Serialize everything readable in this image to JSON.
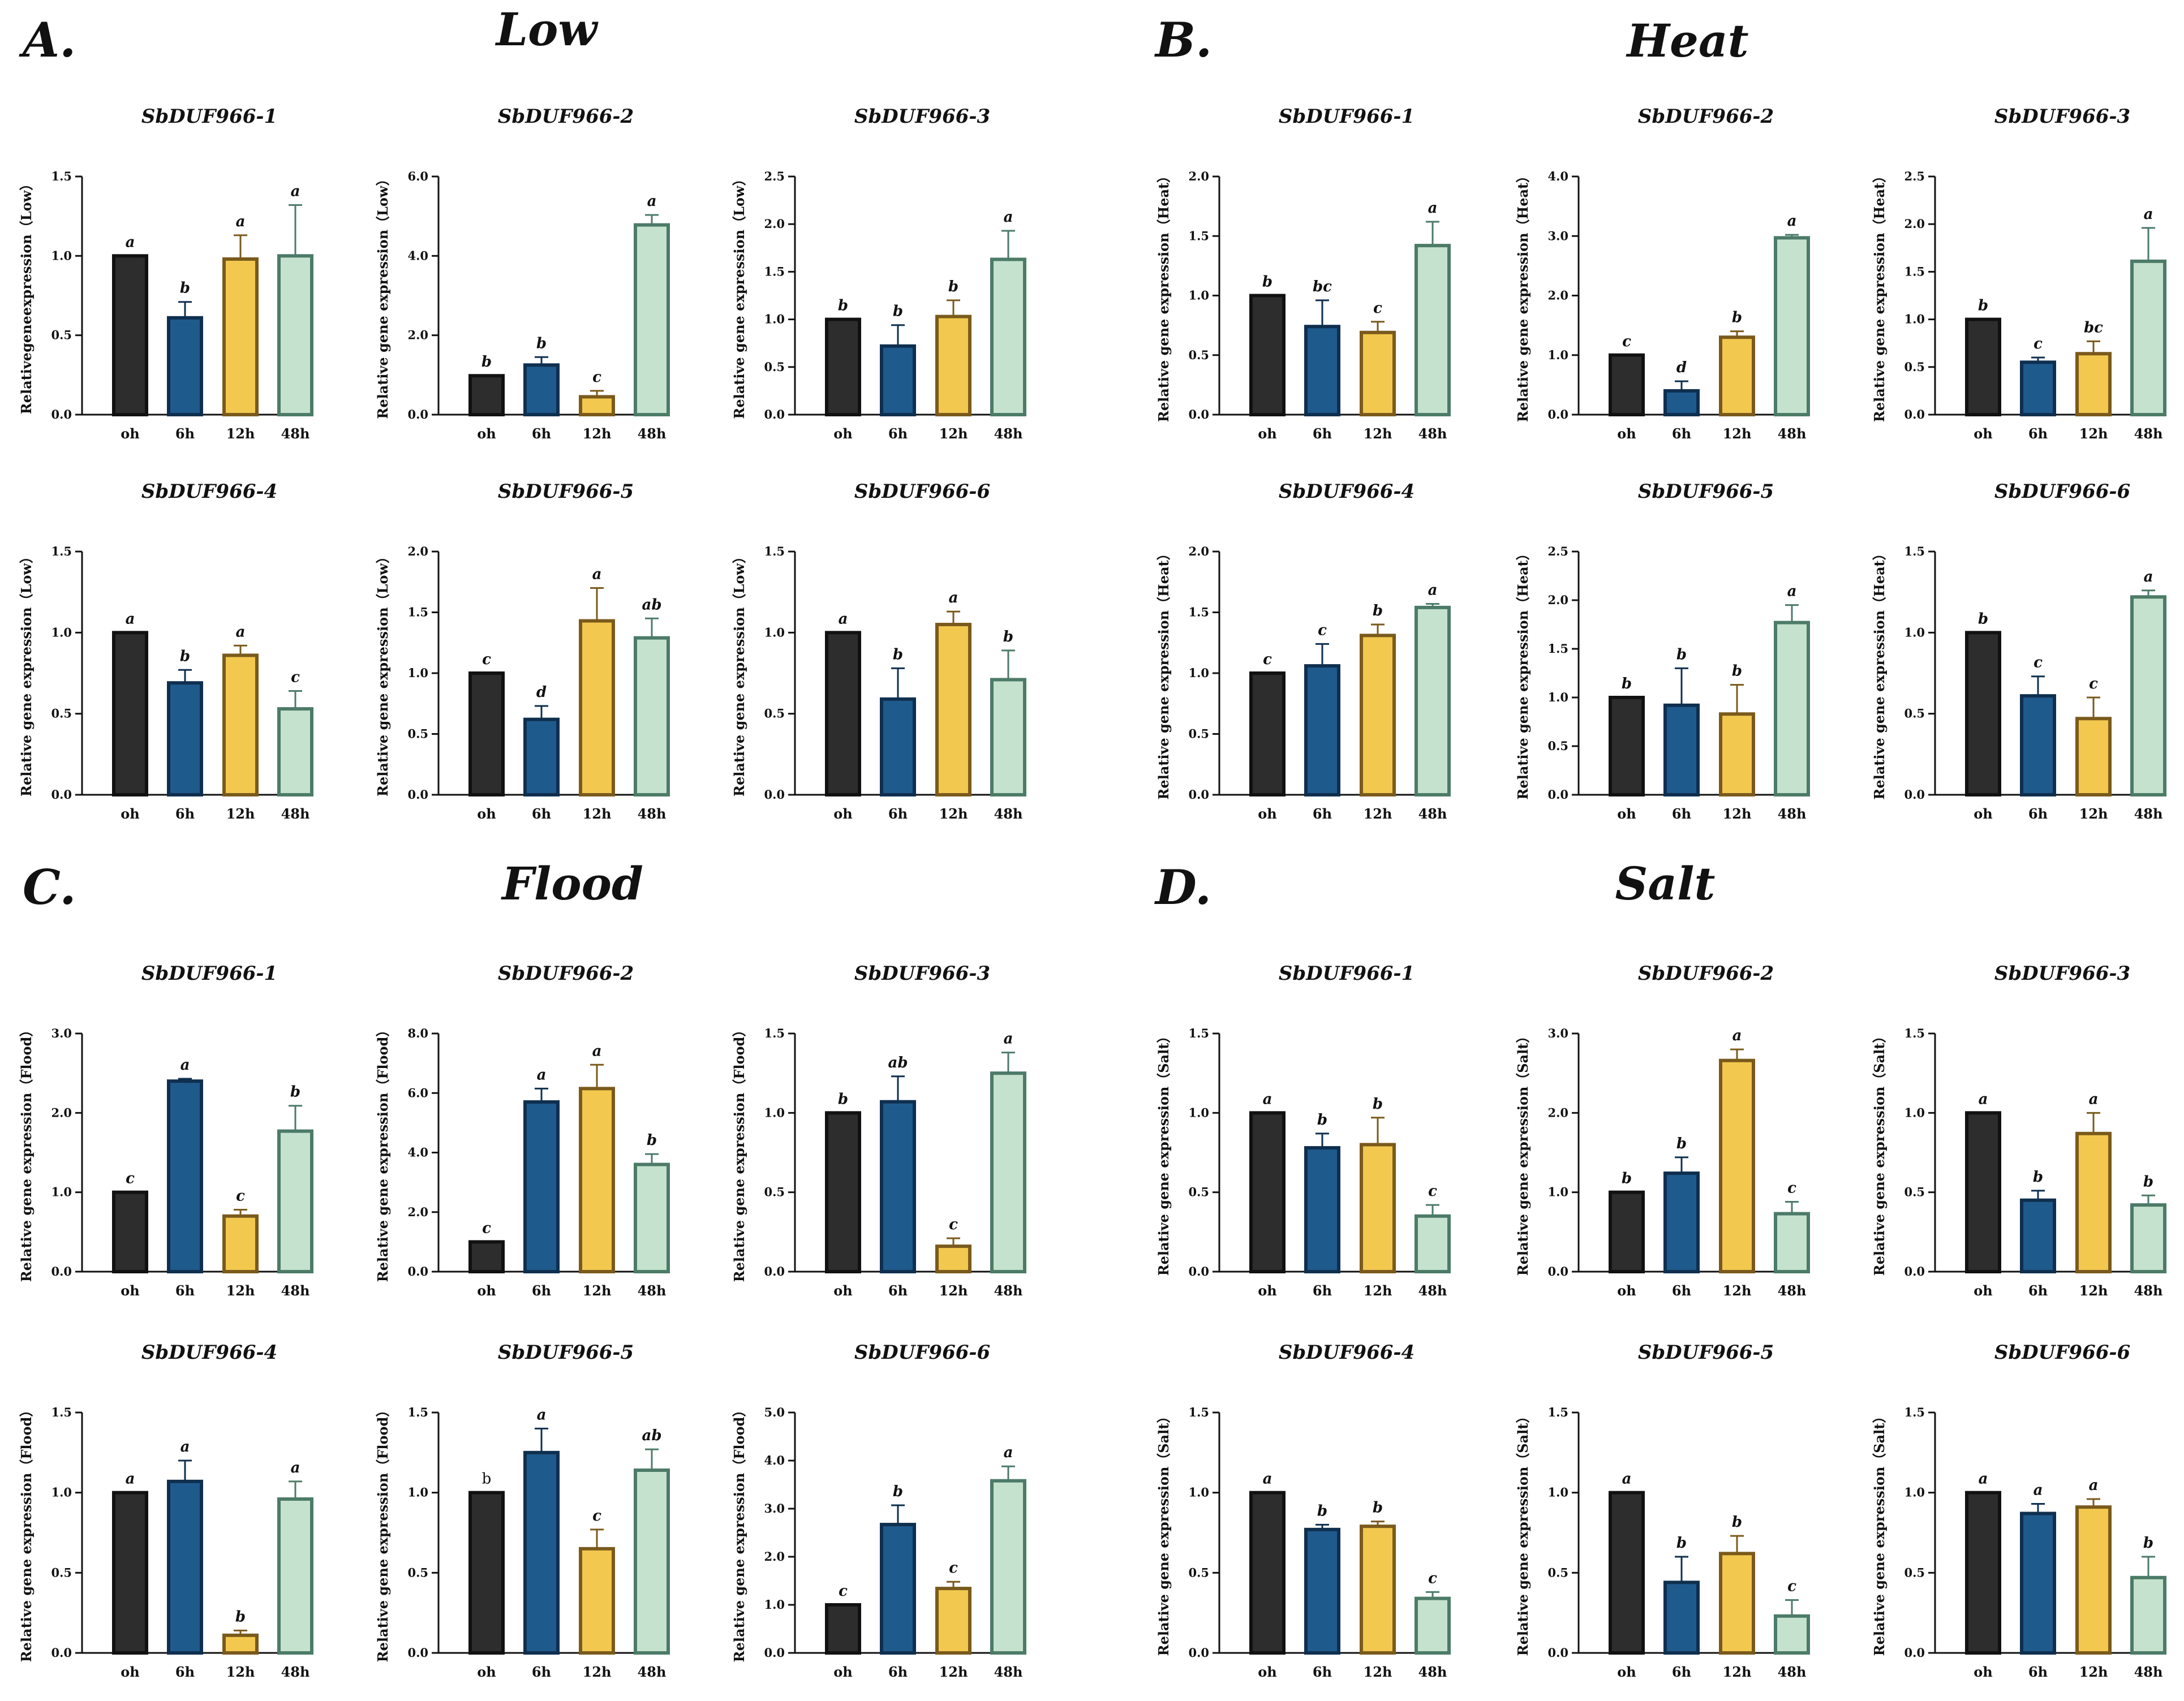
{
  "figure": {
    "panels": [
      {
        "letter": "A.",
        "title": "Low"
      },
      {
        "letter": "B.",
        "title": "Heat"
      },
      {
        "letter": "C.",
        "title": "Flood"
      },
      {
        "letter": "D.",
        "title": "Salt"
      }
    ]
  },
  "colors": {
    "oh": {
      "fill": "#2d2d2d",
      "stroke": "#111111"
    },
    "6h": {
      "fill": "#1f5a8c",
      "stroke": "#0f2f4f"
    },
    "12h": {
      "fill": "#f2c84f",
      "stroke": "#7a5a1c"
    },
    "48h": {
      "fill": "#c4e2cd",
      "stroke": "#4c7b68"
    },
    "text": "#111111"
  },
  "chart_data": [
    {
      "id": "low-1",
      "panel": "A.",
      "condition": "Low",
      "type": "bar",
      "title": "SbDUF966-1",
      "ylabel": "Relativegeneexpression（Low）",
      "categories": [
        "oh",
        "6h",
        "12h",
        "48h"
      ],
      "values": [
        1.0,
        0.61,
        0.98,
        1.0
      ],
      "errors": [
        0,
        0.1,
        0.15,
        0.32
      ],
      "significance": [
        "a",
        "b",
        "a",
        "a"
      ],
      "ylim": [
        0,
        1.5
      ],
      "yticks": [
        "0.0",
        "0.5",
        "1.0",
        "1.5"
      ]
    },
    {
      "id": "low-2",
      "panel": "A.",
      "condition": "Low",
      "type": "bar",
      "title": "SbDUF966-2",
      "ylabel": "Relative gene expression（Low）",
      "categories": [
        "oh",
        "6h",
        "12h",
        "48h"
      ],
      "values": [
        0.98,
        1.25,
        0.45,
        4.78
      ],
      "errors": [
        0,
        0.2,
        0.15,
        0.25
      ],
      "significance": [
        "b",
        "b",
        "c",
        "a"
      ],
      "ylim": [
        0,
        6.0
      ],
      "yticks": [
        "0.0",
        "2.0",
        "4.0",
        "6.0"
      ]
    },
    {
      "id": "low-3",
      "panel": "A.",
      "condition": "Low",
      "type": "bar",
      "title": "SbDUF966-3",
      "ylabel": "Relative gene expression（Low）",
      "categories": [
        "oh",
        "6h",
        "12h",
        "48h"
      ],
      "values": [
        1.0,
        0.72,
        1.03,
        1.63
      ],
      "errors": [
        0,
        0.22,
        0.17,
        0.3
      ],
      "significance": [
        "b",
        "b",
        "b",
        "a"
      ],
      "ylim": [
        0,
        2.5
      ],
      "yticks": [
        "0.0",
        "0.5",
        "1.0",
        "1.5",
        "2.0",
        "2.5"
      ]
    },
    {
      "id": "low-4",
      "panel": "A.",
      "condition": "Low",
      "type": "bar",
      "title": "SbDUF966-4",
      "ylabel": "Relative gene expression（Low）",
      "categories": [
        "oh",
        "6h",
        "12h",
        "48h"
      ],
      "values": [
        1.0,
        0.69,
        0.86,
        0.53
      ],
      "errors": [
        0,
        0.08,
        0.06,
        0.11
      ],
      "significance": [
        "a",
        "b",
        "a",
        "c"
      ],
      "ylim": [
        0,
        1.5
      ],
      "yticks": [
        "0.0",
        "0.5",
        "1.0",
        "1.5"
      ]
    },
    {
      "id": "low-5",
      "panel": "A.",
      "condition": "Low",
      "type": "bar",
      "title": "SbDUF966-5",
      "ylabel": "Relative gene expression（Low）",
      "categories": [
        "oh",
        "6h",
        "12h",
        "48h"
      ],
      "values": [
        1.0,
        0.62,
        1.43,
        1.29
      ],
      "errors": [
        0,
        0.11,
        0.27,
        0.16
      ],
      "significance": [
        "c",
        "d",
        "a",
        "ab"
      ],
      "ylim": [
        0,
        2.0
      ],
      "yticks": [
        "0.0",
        "0.5",
        "1.0",
        "1.5",
        "2.0"
      ]
    },
    {
      "id": "low-6",
      "panel": "A.",
      "condition": "Low",
      "type": "bar",
      "title": "SbDUF966-6",
      "ylabel": "Relative gene expression（Low）",
      "categories": [
        "oh",
        "6h",
        "12h",
        "48h"
      ],
      "values": [
        1.0,
        0.59,
        1.05,
        0.71
      ],
      "errors": [
        0,
        0.19,
        0.08,
        0.18
      ],
      "significance": [
        "a",
        "b",
        "a",
        "b"
      ],
      "ylim": [
        0,
        1.5
      ],
      "yticks": [
        "0.0",
        "0.5",
        "1.0",
        "1.5"
      ]
    },
    {
      "id": "heat-1",
      "panel": "B.",
      "condition": "Heat",
      "type": "bar",
      "title": "SbDUF966-1",
      "ylabel": "Relative gene expression（Heat）",
      "categories": [
        "oh",
        "6h",
        "12h",
        "48h"
      ],
      "values": [
        1.0,
        0.74,
        0.69,
        1.42
      ],
      "errors": [
        0,
        0.22,
        0.09,
        0.2
      ],
      "significance": [
        "b",
        "bc",
        "c",
        "a"
      ],
      "ylim": [
        0,
        2.0
      ],
      "yticks": [
        "0.0",
        "0.5",
        "1.0",
        "1.5",
        "2.0"
      ]
    },
    {
      "id": "heat-2",
      "panel": "B.",
      "condition": "Heat",
      "type": "bar",
      "title": "SbDUF966-2",
      "ylabel": "Relative gene expression（Heat）",
      "categories": [
        "oh",
        "6h",
        "12h",
        "48h"
      ],
      "values": [
        1.0,
        0.4,
        1.3,
        2.97
      ],
      "errors": [
        0,
        0.16,
        0.1,
        0.05
      ],
      "significance": [
        "c",
        "d",
        "b",
        "a"
      ],
      "ylim": [
        0,
        4.0
      ],
      "yticks": [
        "0.0",
        "1.0",
        "2.0",
        "3.0",
        "4.0"
      ]
    },
    {
      "id": "heat-3",
      "panel": "B.",
      "condition": "Heat",
      "type": "bar",
      "title": "SbDUF966-3",
      "ylabel": "Relative gene expression（Heat）",
      "categories": [
        "oh",
        "6h",
        "12h",
        "48h"
      ],
      "values": [
        1.0,
        0.55,
        0.64,
        1.61
      ],
      "errors": [
        0,
        0.05,
        0.13,
        0.35
      ],
      "significance": [
        "b",
        "c",
        "bc",
        "a"
      ],
      "ylim": [
        0,
        2.5
      ],
      "yticks": [
        "0.0",
        "0.5",
        "1.0",
        "1.5",
        "2.0",
        "2.5"
      ]
    },
    {
      "id": "heat-4",
      "panel": "B.",
      "condition": "Heat",
      "type": "bar",
      "title": "SbDUF966-4",
      "ylabel": "Relative gene expression（Heat）",
      "categories": [
        "oh",
        "6h",
        "12h",
        "48h"
      ],
      "values": [
        1.0,
        1.06,
        1.31,
        1.54
      ],
      "errors": [
        0,
        0.18,
        0.09,
        0.03
      ],
      "significance": [
        "c",
        "c",
        "b",
        "a"
      ],
      "ylim": [
        0,
        2.0
      ],
      "yticks": [
        "0.0",
        "0.5",
        "1.0",
        "1.5",
        "2.0"
      ]
    },
    {
      "id": "heat-5",
      "panel": "B.",
      "condition": "Heat",
      "type": "bar",
      "title": "SbDUF966-5",
      "ylabel": "Relative gene expression（Heat）",
      "categories": [
        "oh",
        "6h",
        "12h",
        "48h"
      ],
      "values": [
        1.0,
        0.92,
        0.83,
        1.77
      ],
      "errors": [
        0,
        0.38,
        0.3,
        0.18
      ],
      "significance": [
        "b",
        "b",
        "b",
        "a"
      ],
      "ylim": [
        0,
        2.5
      ],
      "yticks": [
        "0.0",
        "0.5",
        "1.0",
        "1.5",
        "2.0",
        "2.5"
      ]
    },
    {
      "id": "heat-6",
      "panel": "B.",
      "condition": "Heat",
      "type": "bar",
      "title": "SbDUF966-6",
      "ylabel": "Relative gene expression（Heat）",
      "categories": [
        "oh",
        "6h",
        "12h",
        "48h"
      ],
      "values": [
        1.0,
        0.61,
        0.47,
        1.22
      ],
      "errors": [
        0,
        0.12,
        0.13,
        0.04
      ],
      "significance": [
        "b",
        "c",
        "c",
        "a"
      ],
      "ylim": [
        0,
        1.5
      ],
      "yticks": [
        "0.0",
        "0.5",
        "1.0",
        "1.5"
      ]
    },
    {
      "id": "flood-1",
      "panel": "C.",
      "condition": "Flood",
      "type": "bar",
      "title": "SbDUF966-1",
      "ylabel": "Relative gene expression（Flood）",
      "categories": [
        "oh",
        "6h",
        "12h",
        "48h"
      ],
      "values": [
        1.0,
        2.4,
        0.7,
        1.77
      ],
      "errors": [
        0,
        0.03,
        0.08,
        0.32
      ],
      "significance": [
        "c",
        "a",
        "c",
        "b"
      ],
      "ylim": [
        0,
        3.0
      ],
      "yticks": [
        "0.0",
        "1.0",
        "2.0",
        "3.0"
      ]
    },
    {
      "id": "flood-2",
      "panel": "C.",
      "condition": "Flood",
      "type": "bar",
      "title": "SbDUF966-2",
      "ylabel": "Relative gene expression（Flood）",
      "categories": [
        "oh",
        "6h",
        "12h",
        "48h"
      ],
      "values": [
        1.0,
        5.7,
        6.15,
        3.6
      ],
      "errors": [
        0,
        0.45,
        0.8,
        0.35
      ],
      "significance": [
        "c",
        "a",
        "a",
        "b"
      ],
      "ylim": [
        0,
        8.0
      ],
      "yticks": [
        "0.0",
        "2.0",
        "4.0",
        "6.0",
        "8.0"
      ]
    },
    {
      "id": "flood-3",
      "panel": "C.",
      "condition": "Flood",
      "type": "bar",
      "title": "SbDUF966-3",
      "ylabel": "Relative gene expression（Flood）",
      "categories": [
        "oh",
        "6h",
        "12h",
        "48h"
      ],
      "values": [
        1.0,
        1.07,
        0.16,
        1.25
      ],
      "errors": [
        0,
        0.16,
        0.05,
        0.13
      ],
      "significance": [
        "b",
        "ab",
        "c",
        "a"
      ],
      "ylim": [
        0,
        1.5
      ],
      "yticks": [
        "0.0",
        "0.5",
        "1.0",
        "1.5"
      ]
    },
    {
      "id": "flood-4",
      "panel": "C.",
      "condition": "Flood",
      "type": "bar",
      "title": "SbDUF966-4",
      "ylabel": "Relative gene expression（Flood）",
      "categories": [
        "oh",
        "6h",
        "12h",
        "48h"
      ],
      "values": [
        1.0,
        1.07,
        0.11,
        0.96
      ],
      "errors": [
        0,
        0.13,
        0.03,
        0.11
      ],
      "significance": [
        "a",
        "a",
        "b",
        "a"
      ],
      "ylim": [
        0,
        1.5
      ],
      "yticks": [
        "0.0",
        "0.5",
        "1.0",
        "1.5"
      ]
    },
    {
      "id": "flood-5",
      "panel": "C.",
      "condition": "Flood",
      "type": "bar",
      "title": "SbDUF966-5",
      "ylabel": "Relative gene expression（Flood）",
      "categories": [
        "oh",
        "6h",
        "12h",
        "48h"
      ],
      "values": [
        1.0,
        1.25,
        0.65,
        1.14
      ],
      "errors": [
        0,
        0.15,
        0.12,
        0.13
      ],
      "significance": [
        "b",
        "a",
        "c",
        "ab"
      ],
      "significance_style": [
        "upright",
        "italic",
        "italic",
        "italic"
      ],
      "ylim": [
        0,
        1.5
      ],
      "yticks": [
        "0.0",
        "0.5",
        "1.0",
        "1.5"
      ]
    },
    {
      "id": "flood-6",
      "panel": "C.",
      "condition": "Flood",
      "type": "bar",
      "title": "SbDUF966-6",
      "ylabel": "Relative gene expression（Flood）",
      "categories": [
        "oh",
        "6h",
        "12h",
        "48h"
      ],
      "values": [
        1.0,
        2.67,
        1.34,
        3.58
      ],
      "errors": [
        0,
        0.4,
        0.14,
        0.3
      ],
      "significance": [
        "c",
        "b",
        "c",
        "a"
      ],
      "ylim": [
        0,
        5.0
      ],
      "yticks": [
        "0.0",
        "1.0",
        "2.0",
        "3.0",
        "4.0",
        "5.0"
      ]
    },
    {
      "id": "salt-1",
      "panel": "D.",
      "condition": "Salt",
      "type": "bar",
      "title": "SbDUF966-1",
      "ylabel": "Relative gene expression（Salt）",
      "categories": [
        "oh",
        "6h",
        "12h",
        "48h"
      ],
      "values": [
        1.0,
        0.78,
        0.8,
        0.35
      ],
      "errors": [
        0,
        0.09,
        0.17,
        0.07
      ],
      "significance": [
        "a",
        "b",
        "b",
        "c"
      ],
      "ylim": [
        0,
        1.5
      ],
      "yticks": [
        "0.0",
        "0.5",
        "1.0",
        "1.5"
      ]
    },
    {
      "id": "salt-2",
      "panel": "D.",
      "condition": "Salt",
      "type": "bar",
      "title": "SbDUF966-2",
      "ylabel": "Relative gene expression（Salt）",
      "categories": [
        "oh",
        "6h",
        "12h",
        "48h"
      ],
      "values": [
        1.0,
        1.24,
        2.66,
        0.73
      ],
      "errors": [
        0,
        0.2,
        0.14,
        0.15
      ],
      "significance": [
        "b",
        "b",
        "a",
        "c"
      ],
      "ylim": [
        0,
        3.0
      ],
      "yticks": [
        "0.0",
        "1.0",
        "2.0",
        "3.0"
      ]
    },
    {
      "id": "salt-3",
      "panel": "D.",
      "condition": "Salt",
      "type": "bar",
      "title": "SbDUF966-3",
      "ylabel": "Relative gene expression（Salt）",
      "categories": [
        "oh",
        "6h",
        "12h",
        "48h"
      ],
      "values": [
        1.0,
        0.45,
        0.87,
        0.42
      ],
      "errors": [
        0,
        0.06,
        0.13,
        0.06
      ],
      "significance": [
        "a",
        "b",
        "a",
        "b"
      ],
      "ylim": [
        0,
        1.5
      ],
      "yticks": [
        "0.0",
        "0.5",
        "1.0",
        "1.5"
      ]
    },
    {
      "id": "salt-4",
      "panel": "D.",
      "condition": "Salt",
      "type": "bar",
      "title": "SbDUF966-4",
      "ylabel": "Relative gene expression（Salt）",
      "categories": [
        "oh",
        "6h",
        "12h",
        "48h"
      ],
      "values": [
        1.0,
        0.77,
        0.79,
        0.34
      ],
      "errors": [
        0,
        0.03,
        0.03,
        0.04
      ],
      "significance": [
        "a",
        "b",
        "b",
        "c"
      ],
      "ylim": [
        0,
        1.5
      ],
      "yticks": [
        "0.0",
        "0.5",
        "1.0",
        "1.5"
      ]
    },
    {
      "id": "salt-5",
      "panel": "D.",
      "condition": "Salt",
      "type": "bar",
      "title": "SbDUF966-5",
      "ylabel": "Relative gene expression（Salt）",
      "categories": [
        "oh",
        "6h",
        "12h",
        "48h"
      ],
      "values": [
        1.0,
        0.44,
        0.62,
        0.23
      ],
      "errors": [
        0,
        0.16,
        0.11,
        0.1
      ],
      "significance": [
        "a",
        "b",
        "b",
        "c"
      ],
      "ylim": [
        0,
        1.5
      ],
      "yticks": [
        "0.0",
        "0.5",
        "1.0",
        "1.5"
      ]
    },
    {
      "id": "salt-6",
      "panel": "D.",
      "condition": "Salt",
      "type": "bar",
      "title": "SbDUF966-6",
      "ylabel": "Relative gene expression（Salt）",
      "categories": [
        "oh",
        "6h",
        "12h",
        "48h"
      ],
      "values": [
        1.0,
        0.87,
        0.91,
        0.47
      ],
      "errors": [
        0,
        0.06,
        0.05,
        0.13
      ],
      "significance": [
        "a",
        "a",
        "a",
        "b"
      ],
      "ylim": [
        0,
        1.5
      ],
      "yticks": [
        "0.0",
        "0.5",
        "1.0",
        "1.5"
      ]
    }
  ]
}
